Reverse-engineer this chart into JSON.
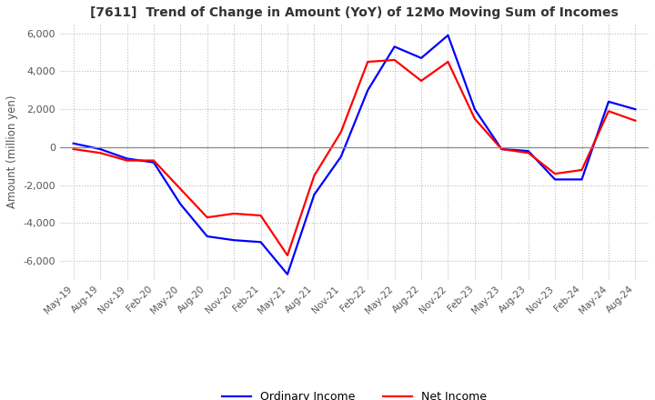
{
  "title": "[7611]  Trend of Change in Amount (YoY) of 12Mo Moving Sum of Incomes",
  "ylabel": "Amount (million yen)",
  "ylim": [
    -7000,
    6500
  ],
  "yticks": [
    -6000,
    -4000,
    -2000,
    0,
    2000,
    4000,
    6000
  ],
  "legend": [
    "Ordinary Income",
    "Net Income"
  ],
  "line_colors": [
    "#0000ff",
    "#ff0000"
  ],
  "x_labels": [
    "May-19",
    "Aug-19",
    "Nov-19",
    "Feb-20",
    "May-20",
    "Aug-20",
    "Nov-20",
    "Feb-21",
    "May-21",
    "Aug-21",
    "Nov-21",
    "Feb-22",
    "May-22",
    "Aug-22",
    "Nov-22",
    "Feb-23",
    "May-23",
    "Aug-23",
    "Nov-23",
    "Feb-24",
    "May-24",
    "Aug-24"
  ],
  "ordinary_income": [
    200,
    -100,
    -600,
    -800,
    -3000,
    -4700,
    -4900,
    -5000,
    -6700,
    -2500,
    -500,
    3000,
    5300,
    4700,
    5900,
    2000,
    -100,
    -200,
    -1700,
    -1700,
    2400,
    2000
  ],
  "net_income": [
    -100,
    -300,
    -700,
    -700,
    -2200,
    -3700,
    -3500,
    -3600,
    -5700,
    -1500,
    800,
    4500,
    4600,
    3500,
    4500,
    1500,
    -100,
    -300,
    -1400,
    -1200,
    1900,
    1400
  ],
  "background_color": "#ffffff",
  "grid_color": "#bbbbbb",
  "zero_line_color": "#888888",
  "title_color": "#333333"
}
